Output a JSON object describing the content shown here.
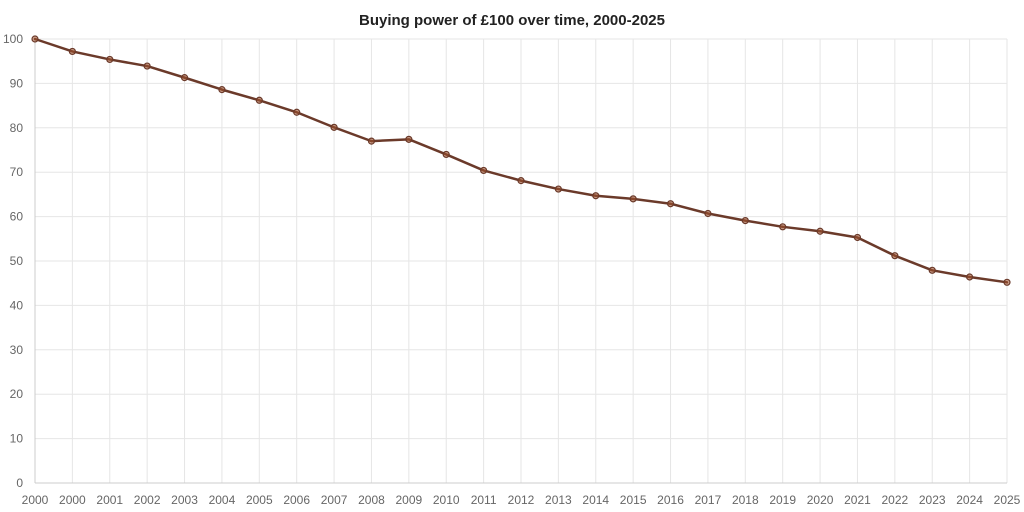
{
  "chart_data": {
    "type": "line",
    "title": "Buying power of £100 over time, 2000-2025",
    "xlabel": "",
    "ylabel": "",
    "categories": [
      "2000",
      "2000",
      "2001",
      "2002",
      "2003",
      "2004",
      "2005",
      "2006",
      "2007",
      "2008",
      "2009",
      "2010",
      "2011",
      "2012",
      "2013",
      "2014",
      "2015",
      "2016",
      "2017",
      "2018",
      "2019",
      "2020",
      "2021",
      "2022",
      "2023",
      "2024",
      "2025"
    ],
    "series": [
      {
        "values": [
          100,
          97.2,
          95.4,
          93.9,
          91.3,
          88.6,
          86.2,
          83.5,
          80.1,
          77.0,
          77.4,
          74.0,
          70.4,
          68.1,
          66.2,
          64.7,
          64.0,
          62.9,
          60.7,
          59.1,
          57.7,
          56.7,
          55.3,
          51.2,
          47.9,
          46.4,
          45.2
        ]
      }
    ],
    "ylim": [
      0,
      100
    ],
    "yticks": [
      "0",
      "10",
      "20",
      "30",
      "40",
      "50",
      "60",
      "70",
      "80",
      "90",
      "100"
    ],
    "grid": true,
    "legend": "none",
    "colors": {
      "line": "#6b3a2a",
      "marker_fill": "#a0522d",
      "grid": "#e6e6e6"
    }
  }
}
